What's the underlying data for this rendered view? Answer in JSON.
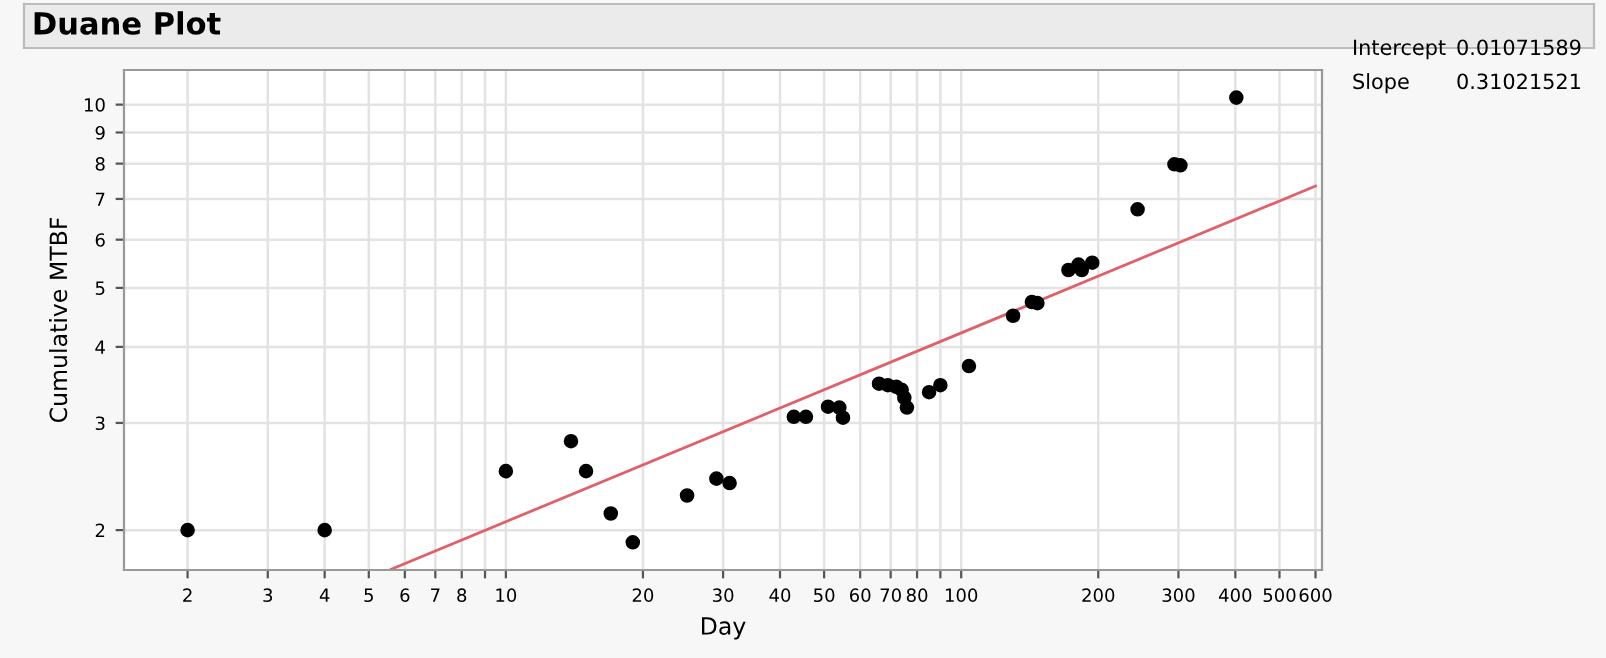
{
  "chart_data": {
    "type": "scatter",
    "title": "Duane Plot",
    "xlabel": "Day",
    "ylabel": "Cumulative MTBF",
    "log": "xy",
    "grid": true,
    "xlim": [
      1.45,
      620
    ],
    "ylim": [
      1.72,
      11.4
    ],
    "xticks": [
      2,
      3,
      4,
      5,
      6,
      7,
      8,
      {
        "value": 9,
        "label": null
      },
      10,
      20,
      30,
      40,
      50,
      60,
      70,
      80,
      {
        "value": 90,
        "label": null
      },
      100,
      200,
      300,
      400,
      500,
      600
    ],
    "yticks": [
      2,
      3,
      4,
      5,
      6,
      7,
      8,
      9,
      10
    ],
    "annotations": [
      "Intercept",
      "0.01071589",
      "Slope",
      "0.31021521"
    ],
    "series": [
      {
        "color": "#000000",
        "marker": "circle",
        "x": [
          2,
          4,
          10,
          13.9,
          15,
          17,
          19,
          25,
          29,
          31,
          42.9,
          45.6,
          51,
          54,
          55,
          66,
          69,
          72,
          74,
          75,
          76,
          85,
          90,
          104,
          130,
          143,
          147,
          172,
          181,
          184,
          194,
          244,
          294,
          303,
          402
        ],
        "values": [
          2,
          2,
          2.5,
          2.8,
          2.5,
          2.13,
          1.91,
          2.28,
          2.43,
          2.39,
          3.07,
          3.07,
          3.19,
          3.18,
          3.06,
          3.48,
          3.46,
          3.44,
          3.4,
          3.3,
          3.18,
          3.37,
          3.46,
          3.72,
          4.5,
          4.74,
          4.72,
          5.35,
          5.46,
          5.35,
          5.5,
          6.73,
          7.98,
          7.95,
          10.27
        ]
      },
      {
        "type": "line",
        "color": "#e0606a",
        "marker": "none",
        "line_style": "solid",
        "x": [
          5.6,
          600
        ],
        "values": [
          1.725,
          7.35
        ]
      }
    ]
  }
}
